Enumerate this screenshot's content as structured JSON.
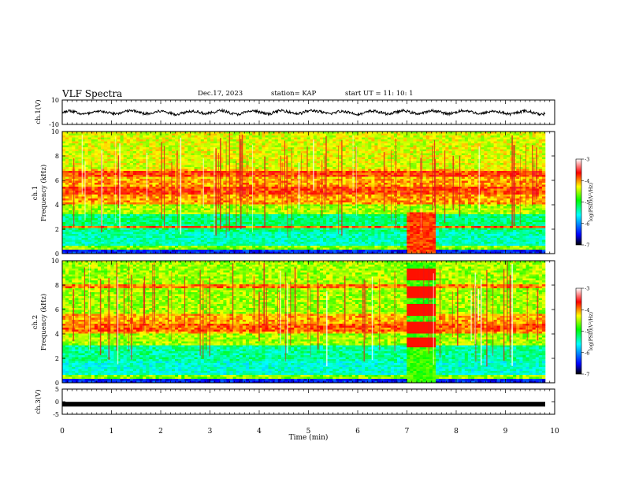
{
  "header": {
    "title": "VLF Spectra",
    "date": "Dec.17, 2023",
    "station": "station= KAP",
    "start_ut": "start  UT =   11: 10: 1"
  },
  "chart_data": [
    {
      "type": "line",
      "panel": "ch1-waveform",
      "ylabel": "ch.1(V)",
      "ylim": [
        -10,
        10
      ],
      "y_ticks": [
        "10",
        "-10"
      ],
      "xlim": [
        0,
        10
      ],
      "x_extent_min": 9.8,
      "description_values": "noisy waveform oscillating roughly between -3 and 3 V"
    },
    {
      "type": "heatmap",
      "panel": "ch1-spectrogram",
      "ylabel": "ch.1\nFrequency (kHz)",
      "ylabel_lines": [
        "ch.1",
        "Frequency (kHz)"
      ],
      "ylim": [
        0,
        10
      ],
      "y_ticks": [
        "0",
        "2",
        "4",
        "6",
        "8",
        "10"
      ],
      "xlim": [
        0,
        10
      ],
      "x_extent_min": 9.8,
      "colorbar": {
        "label": "log(PSD)(V²/Hz)",
        "range": [
          -7,
          -3
        ],
        "ticks": [
          "-3",
          "-4",
          "-5",
          "-6",
          "-7"
        ]
      },
      "bands_khz": [
        5.2,
        6.5,
        2.2
      ],
      "event": {
        "start_min": 7.0,
        "end_min": 7.6
      }
    },
    {
      "type": "heatmap",
      "panel": "ch2-spectrogram",
      "ylabel": "ch.2\nFrequency (kHz)",
      "ylabel_lines": [
        "ch.2",
        "Frequency (kHz)"
      ],
      "ylim": [
        0,
        10
      ],
      "y_ticks": [
        "0",
        "2",
        "4",
        "6",
        "8",
        "10"
      ],
      "xlim": [
        0,
        10
      ],
      "x_extent_min": 9.8,
      "colorbar": {
        "label": "log(PSD)(V²/Hz)",
        "range": [
          -7,
          -3
        ],
        "ticks": [
          "-3",
          "-4",
          "-5",
          "-6",
          "-7"
        ]
      },
      "bands_khz": [
        4.5,
        7.9
      ],
      "event": {
        "start_min": 7.0,
        "end_min": 7.6,
        "pulse_bands_khz": [
          3.3,
          4.5,
          6.0,
          7.4,
          8.9
        ]
      }
    },
    {
      "type": "line",
      "panel": "ch3-waveform",
      "ylabel": "ch.3(V)",
      "ylim": [
        -5,
        5
      ],
      "y_ticks": [
        "5",
        "0",
        "-5"
      ],
      "xlim": [
        0,
        10
      ],
      "x_extent_min": 9.8,
      "xlabel": "Time (min)",
      "x_ticks": [
        "0",
        "1",
        "2",
        "3",
        "4",
        "5",
        "6",
        "7",
        "8",
        "9",
        "10"
      ],
      "description_values": "dense oscillation around -1 V with amplitude about 0.5 V"
    }
  ]
}
